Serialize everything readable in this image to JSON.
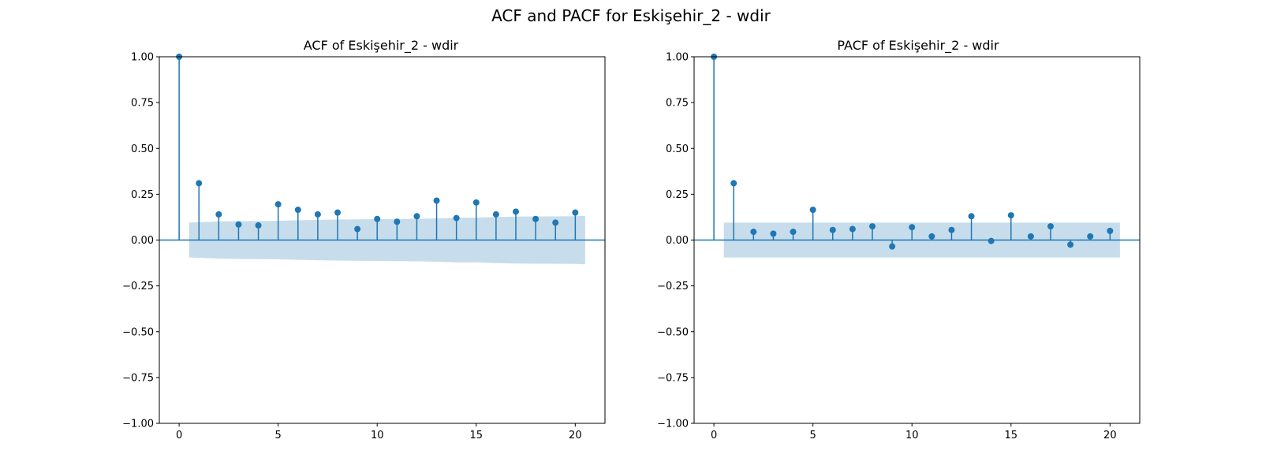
{
  "figure": {
    "suptitle": "ACF and PACF for Eskişehir_2 - wdir"
  },
  "colors": {
    "stem": "#1f77b4",
    "confidence_band": "#1f77b4",
    "axes": "#000000",
    "background": "#ffffff"
  },
  "chart_data": [
    {
      "type": "stem",
      "title": "ACF of Eskişehir_2 - wdir",
      "xlabel": "",
      "ylabel": "",
      "xlim": [
        -1,
        21.5
      ],
      "ylim": [
        -1.0,
        1.0
      ],
      "x_ticks": [
        0,
        5,
        10,
        15,
        20
      ],
      "x_tick_labels": [
        "0",
        "5",
        "10",
        "15",
        "20"
      ],
      "y_ticks": [
        -1.0,
        -0.75,
        -0.5,
        -0.25,
        0.0,
        0.25,
        0.5,
        0.75,
        1.0
      ],
      "y_tick_labels": [
        "−1.00",
        "−0.75",
        "−0.50",
        "−0.25",
        "0.00",
        "0.25",
        "0.50",
        "0.75",
        "1.00"
      ],
      "grid": false,
      "lags": [
        0,
        1,
        2,
        3,
        4,
        5,
        6,
        7,
        8,
        9,
        10,
        11,
        12,
        13,
        14,
        15,
        16,
        17,
        18,
        19,
        20
      ],
      "values": [
        1.0,
        0.31,
        0.14,
        0.085,
        0.08,
        0.195,
        0.165,
        0.14,
        0.15,
        0.06,
        0.115,
        0.1,
        0.13,
        0.215,
        0.12,
        0.205,
        0.14,
        0.155,
        0.115,
        0.095,
        0.15
      ],
      "confidence_band": {
        "x": [
          0.5,
          1,
          2,
          3,
          4,
          5,
          6,
          7,
          8,
          9,
          10,
          11,
          12,
          13,
          14,
          15,
          16,
          17,
          18,
          19,
          20,
          20.5
        ],
        "upper": [
          0.095,
          0.097,
          0.101,
          0.103,
          0.104,
          0.105,
          0.108,
          0.11,
          0.112,
          0.113,
          0.114,
          0.115,
          0.116,
          0.118,
          0.122,
          0.122,
          0.126,
          0.128,
          0.129,
          0.129,
          0.13,
          0.132
        ],
        "lower": [
          -0.095,
          -0.097,
          -0.101,
          -0.103,
          -0.104,
          -0.105,
          -0.108,
          -0.11,
          -0.112,
          -0.113,
          -0.114,
          -0.115,
          -0.116,
          -0.118,
          -0.122,
          -0.122,
          -0.126,
          -0.128,
          -0.129,
          -0.129,
          -0.13,
          -0.132
        ]
      }
    },
    {
      "type": "stem",
      "title": "PACF of Eskişehir_2 - wdir",
      "xlabel": "",
      "ylabel": "",
      "xlim": [
        -1,
        21.5
      ],
      "ylim": [
        -1.0,
        1.0
      ],
      "x_ticks": [
        0,
        5,
        10,
        15,
        20
      ],
      "x_tick_labels": [
        "0",
        "5",
        "10",
        "15",
        "20"
      ],
      "y_ticks": [
        -1.0,
        -0.75,
        -0.5,
        -0.25,
        0.0,
        0.25,
        0.5,
        0.75,
        1.0
      ],
      "y_tick_labels": [
        "−1.00",
        "−0.75",
        "−0.50",
        "−0.25",
        "0.00",
        "0.25",
        "0.50",
        "0.75",
        "1.00"
      ],
      "grid": false,
      "lags": [
        0,
        1,
        2,
        3,
        4,
        5,
        6,
        7,
        8,
        9,
        10,
        11,
        12,
        13,
        14,
        15,
        16,
        17,
        18,
        19,
        20
      ],
      "values": [
        1.0,
        0.31,
        0.045,
        0.035,
        0.045,
        0.165,
        0.055,
        0.06,
        0.075,
        -0.035,
        0.07,
        0.02,
        0.055,
        0.13,
        -0.005,
        0.135,
        0.02,
        0.075,
        -0.025,
        0.02,
        0.05
      ],
      "confidence_band": {
        "x": [
          0.5,
          20.5
        ],
        "upper": [
          0.095,
          0.095
        ],
        "lower": [
          -0.095,
          -0.095
        ]
      }
    }
  ]
}
